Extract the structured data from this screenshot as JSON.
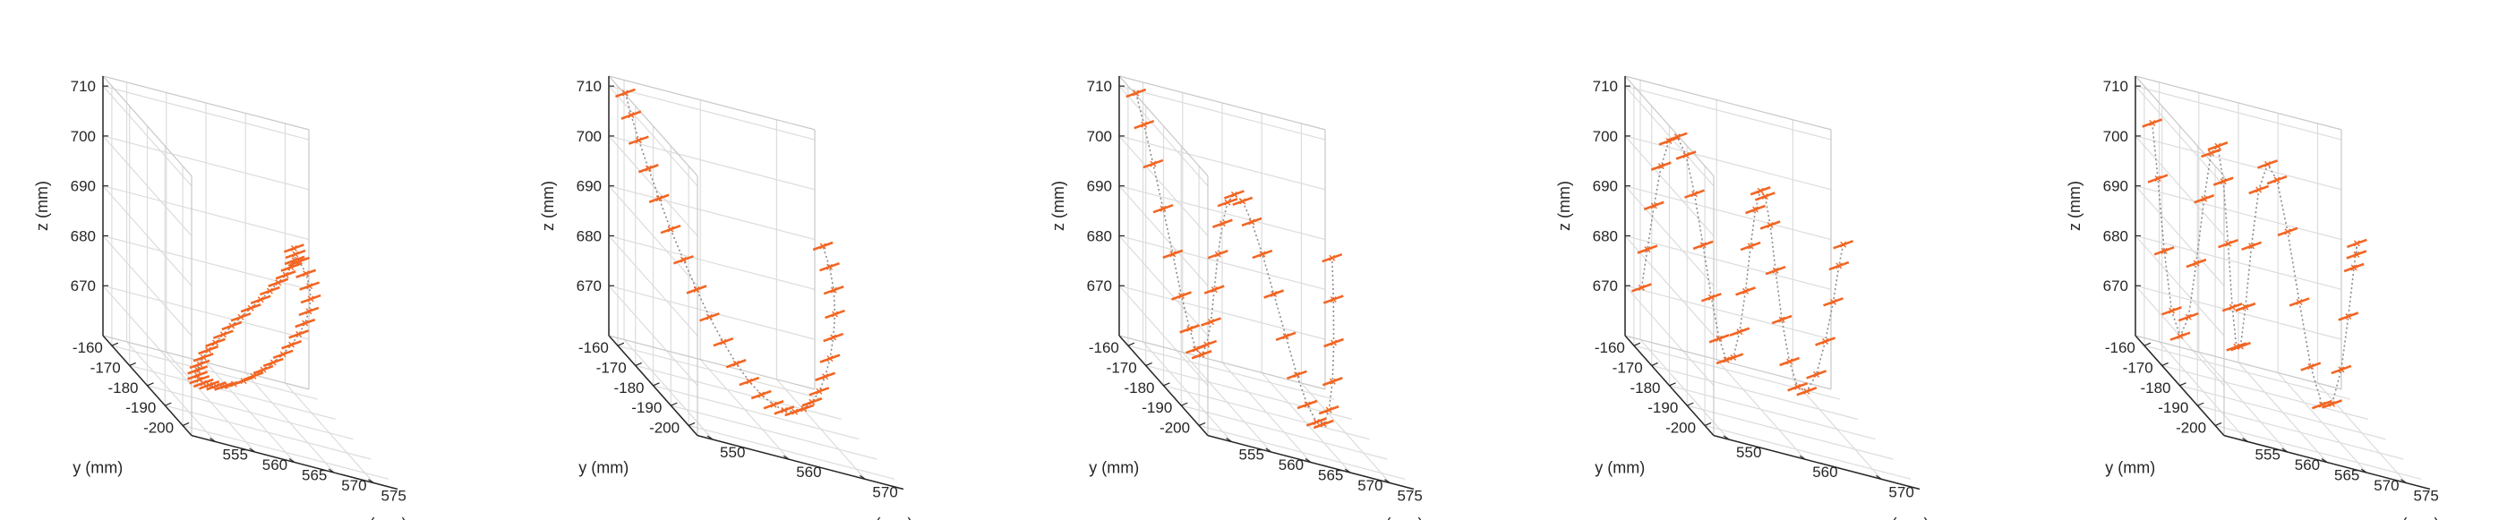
{
  "figure": {
    "panel_count": 5
  },
  "chart_data": [
    {
      "type": "scatter3d",
      "xlabel": "x (mm)",
      "ylabel": "y (mm)",
      "zlabel": "z (mm)",
      "x_ticks": [
        "555",
        "560",
        "565",
        "570",
        "575"
      ],
      "y_ticks": [
        "-160",
        "-170",
        "-180",
        "-190",
        "-200"
      ],
      "z_ticks": [
        "670",
        "680",
        "690",
        "700",
        "710"
      ],
      "xlim": [
        552,
        578
      ],
      "ylim": [
        -205,
        -155
      ],
      "zlim": [
        660,
        712
      ],
      "grid": true,
      "colors": {
        "marker": "#f26522",
        "path": "#8c8c8c"
      },
      "trajectory": "ellipse",
      "points": [
        [
          575.0,
          -160.0,
          689.0
        ],
        [
          574.8,
          -161.7,
          688.4
        ],
        [
          574.3,
          -163.5,
          687.7
        ],
        [
          573.4,
          -165.4,
          686.7
        ],
        [
          572.3,
          -167.4,
          685.5
        ],
        [
          570.9,
          -169.4,
          684.2
        ],
        [
          569.4,
          -171.4,
          682.7
        ],
        [
          567.8,
          -173.4,
          681.1
        ],
        [
          566.1,
          -175.4,
          679.5
        ],
        [
          564.4,
          -177.4,
          677.8
        ],
        [
          562.8,
          -179.4,
          676.2
        ],
        [
          561.3,
          -181.3,
          674.6
        ],
        [
          559.9,
          -183.1,
          673.1
        ],
        [
          558.6,
          -184.9,
          671.8
        ],
        [
          557.6,
          -186.6,
          670.6
        ],
        [
          556.8,
          -188.1,
          669.5
        ],
        [
          556.2,
          -189.6,
          668.7
        ],
        [
          555.9,
          -190.9,
          668.0
        ],
        [
          555.9,
          -192.0,
          667.6
        ],
        [
          556.2,
          -192.9,
          667.4
        ],
        [
          556.8,
          -193.5,
          667.5
        ],
        [
          557.6,
          -193.9,
          667.8
        ],
        [
          558.6,
          -194.0,
          668.2
        ],
        [
          559.9,
          -193.6,
          669.0
        ],
        [
          561.3,
          -192.8,
          669.9
        ],
        [
          562.8,
          -191.6,
          671.0
        ],
        [
          564.4,
          -190.0,
          672.3
        ],
        [
          566.1,
          -188.1,
          673.7
        ],
        [
          567.8,
          -186.0,
          675.2
        ],
        [
          569.4,
          -183.6,
          676.8
        ],
        [
          570.9,
          -181.0,
          678.5
        ],
        [
          572.3,
          -178.3,
          680.2
        ],
        [
          573.4,
          -175.5,
          681.9
        ],
        [
          574.3,
          -172.6,
          683.6
        ],
        [
          574.8,
          -169.6,
          685.2
        ],
        [
          575.0,
          -166.7,
          686.6
        ],
        [
          574.8,
          -164.0,
          687.9
        ]
      ]
    },
    {
      "type": "scatter3d",
      "xlabel": "x (mm)",
      "ylabel": "y (mm)",
      "zlabel": "z (mm)",
      "x_ticks": [
        "550",
        "560",
        "570"
      ],
      "y_ticks": [
        "-160",
        "-170",
        "-180",
        "-190",
        "-200"
      ],
      "z_ticks": [
        "670",
        "680",
        "690",
        "700",
        "710"
      ],
      "xlim": [
        548,
        575
      ],
      "ylim": [
        -205,
        -155
      ],
      "zlim": [
        660,
        712
      ],
      "grid": true,
      "colors": {
        "marker": "#f26522",
        "path": "#8c8c8c"
      },
      "trajectory": "U-shape",
      "points": [
        [
          549.0,
          -160.0,
          711.0
        ],
        [
          549.3,
          -162.0,
          707.5
        ],
        [
          549.8,
          -164.1,
          703.5
        ],
        [
          550.6,
          -166.2,
          699.0
        ],
        [
          551.5,
          -168.3,
          694.2
        ],
        [
          552.5,
          -170.5,
          689.3
        ],
        [
          553.7,
          -172.6,
          684.5
        ],
        [
          554.9,
          -174.8,
          679.9
        ],
        [
          556.1,
          -176.9,
          675.7
        ],
        [
          557.4,
          -179.1,
          672.1
        ],
        [
          558.6,
          -181.2,
          669.1
        ],
        [
          559.8,
          -183.4,
          666.9
        ],
        [
          560.9,
          -185.5,
          665.5
        ],
        [
          562.0,
          -187.7,
          664.8
        ],
        [
          562.9,
          -189.8,
          664.9
        ],
        [
          563.8,
          -191.9,
          665.8
        ],
        [
          564.5,
          -194.0,
          667.5
        ],
        [
          565.1,
          -196.0,
          669.9
        ],
        [
          565.6,
          -197.9,
          673.0
        ],
        [
          566.0,
          -199.6,
          676.8
        ],
        [
          566.3,
          -201.0,
          681.1
        ],
        [
          566.5,
          -202.0,
          685.8
        ],
        [
          566.6,
          -202.5,
          690.7
        ],
        [
          566.5,
          -202.3,
          695.4
        ],
        [
          566.2,
          -201.2,
          699.5
        ],
        [
          565.8,
          -199.2,
          702.7
        ]
      ]
    },
    {
      "type": "scatter3d",
      "xlabel": "x (mm)",
      "ylabel": "y (mm)",
      "zlabel": "z (mm)",
      "x_ticks": [
        "555",
        "560",
        "565",
        "570",
        "575"
      ],
      "y_ticks": [
        "-160",
        "-170",
        "-180",
        "-190",
        "-200"
      ],
      "z_ticks": [
        "670",
        "680",
        "690",
        "700",
        "710"
      ],
      "xlim": [
        552,
        578
      ],
      "ylim": [
        -205,
        -155
      ],
      "zlim": [
        660,
        712
      ],
      "grid": true,
      "colors": {
        "marker": "#f26522",
        "path": "#8c8c8c"
      },
      "trajectory": "W-shape",
      "points": [
        [
          553.0,
          -160.0,
          711.0
        ],
        [
          553.3,
          -163.2,
          706.1
        ],
        [
          553.8,
          -166.1,
          699.6
        ],
        [
          554.5,
          -168.6,
          691.9
        ],
        [
          555.3,
          -170.5,
          683.9
        ],
        [
          556.1,
          -171.8,
          676.4
        ],
        [
          557.0,
          -172.4,
          670.4
        ],
        [
          557.8,
          -172.3,
          666.6
        ],
        [
          558.7,
          -171.6,
          665.6
        ],
        [
          559.6,
          -170.4,
          667.5
        ],
        [
          560.5,
          -168.8,
          671.8
        ],
        [
          561.3,
          -167.1,
          677.9
        ],
        [
          562.1,
          -165.6,
          684.7
        ],
        [
          562.9,
          -164.6,
          690.8
        ],
        [
          563.6,
          -164.3,
          695.2
        ],
        [
          564.3,
          -164.9,
          697.3
        ],
        [
          565.0,
          -166.5,
          696.9
        ],
        [
          565.6,
          -169.0,
          694.0
        ],
        [
          566.2,
          -172.3,
          689.1
        ],
        [
          566.8,
          -176.1,
          682.9
        ],
        [
          567.4,
          -180.2,
          676.3
        ],
        [
          567.9,
          -184.2,
          670.4
        ],
        [
          568.4,
          -187.8,
          666.1
        ],
        [
          568.9,
          -190.8,
          664.0
        ],
        [
          569.3,
          -193.0,
          664.6
        ],
        [
          569.7,
          -194.2,
          668.1
        ],
        [
          570.1,
          -194.5,
          674.1
        ],
        [
          570.4,
          -193.8,
          681.7
        ],
        [
          570.7,
          -192.3,
          689.9
        ],
        [
          571.0,
          -190.2,
          697.5
        ]
      ]
    },
    {
      "type": "scatter3d",
      "xlabel": "x (mm)",
      "ylabel": "y (mm)",
      "zlabel": "z (mm)",
      "x_ticks": [
        "550",
        "560",
        "570"
      ],
      "y_ticks": [
        "-160",
        "-170",
        "-180",
        "-190",
        "-200"
      ],
      "z_ticks": [
        "670",
        "680",
        "690",
        "700",
        "710"
      ],
      "xlim": [
        548,
        575
      ],
      "ylim": [
        -205,
        -155
      ],
      "zlim": [
        660,
        712
      ],
      "grid": true,
      "colors": {
        "marker": "#f26522",
        "path": "#8c8c8c"
      },
      "trajectory": "three-hump",
      "points": [
        [
          549.0,
          -160.0,
          672.0
        ],
        [
          549.3,
          -162.0,
          680.6
        ],
        [
          549.7,
          -164.0,
          690.3
        ],
        [
          550.2,
          -165.9,
          699.2
        ],
        [
          550.8,
          -167.7,
          705.2
        ],
        [
          551.5,
          -169.4,
          707.0
        ],
        [
          552.3,
          -170.9,
          704.2
        ],
        [
          553.1,
          -172.2,
          697.3
        ],
        [
          554.0,
          -173.2,
          687.8
        ],
        [
          554.9,
          -174.0,
          678.0
        ],
        [
          555.8,
          -174.5,
          670.3
        ],
        [
          556.7,
          -174.7,
          666.5
        ],
        [
          557.6,
          -174.7,
          667.3
        ],
        [
          558.5,
          -174.4,
          672.7
        ],
        [
          559.4,
          -173.9,
          681.0
        ],
        [
          560.2,
          -173.3,
          690.1
        ],
        [
          561.0,
          -172.6,
          697.5
        ],
        [
          561.8,
          -172.0,
          701.3
        ],
        [
          562.5,
          -171.6,
          700.3
        ],
        [
          563.2,
          -171.5,
          694.8
        ],
        [
          563.8,
          -171.9,
          686.1
        ],
        [
          564.4,
          -172.9,
          676.9
        ],
        [
          565.0,
          -174.6,
          669.4
        ],
        [
          565.5,
          -177.0,
          665.5
        ],
        [
          566.0,
          -180.0,
          666.0
        ],
        [
          566.5,
          -183.3,
          670.9
        ],
        [
          566.9,
          -186.6,
          679.0
        ],
        [
          567.3,
          -189.4,
          688.2
        ],
        [
          567.6,
          -191.3,
          696.3
        ],
        [
          568.0,
          -192.0,
          701.0
        ]
      ]
    },
    {
      "type": "scatter3d",
      "xlabel": "x (mm)",
      "ylabel": "y (mm)",
      "zlabel": "z (mm)",
      "x_ticks": [
        "555",
        "560",
        "565",
        "570",
        "575"
      ],
      "y_ticks": [
        "-160",
        "-170",
        "-180",
        "-190",
        "-200"
      ],
      "z_ticks": [
        "670",
        "680",
        "690",
        "700",
        "710"
      ],
      "xlim": [
        552,
        578
      ],
      "ylim": [
        -205,
        -155
      ],
      "zlim": [
        660,
        712
      ],
      "grid": true,
      "colors": {
        "marker": "#f26522",
        "path": "#8c8c8c"
      },
      "trajectory": "multi-loop",
      "points": [
        [
          553.0,
          -160.0,
          705.0
        ],
        [
          553.4,
          -161.4,
          694.6
        ],
        [
          553.8,
          -163.2,
          681.0
        ],
        [
          554.3,
          -165.2,
          670.0
        ],
        [
          554.9,
          -167.3,
          666.0
        ],
        [
          555.5,
          -169.3,
          670.9
        ],
        [
          556.1,
          -171.0,
          682.6
        ],
        [
          556.8,
          -172.3,
          696.3
        ],
        [
          557.5,
          -173.1,
          706.1
        ],
        [
          558.3,
          -173.3,
          707.9
        ],
        [
          559.1,
          -172.9,
          701.0
        ],
        [
          559.9,
          -172.0,
          688.5
        ],
        [
          560.7,
          -170.8,
          675.6
        ],
        [
          561.5,
          -169.5,
          667.5
        ],
        [
          562.3,
          -168.3,
          667.4
        ],
        [
          563.1,
          -167.5,
          675.3
        ],
        [
          563.9,
          -167.3,
          687.8
        ],
        [
          564.7,
          -167.8,
          699.6
        ],
        [
          565.5,
          -169.2,
          705.6
        ],
        [
          566.2,
          -171.4,
          703.6
        ],
        [
          566.9,
          -174.3,
          694.7
        ],
        [
          567.6,
          -177.8,
          682.3
        ],
        [
          568.2,
          -181.5,
          671.1
        ],
        [
          568.8,
          -185.2,
          665.2
        ],
        [
          569.3,
          -188.6,
          666.9
        ],
        [
          569.8,
          -191.6,
          675.2
        ],
        [
          570.2,
          -193.8,
          686.9
        ],
        [
          570.6,
          -195.2,
          697.4
        ],
        [
          570.9,
          -195.5,
          702.5
        ],
        [
          571.0,
          -194.8,
          700.0
        ]
      ]
    }
  ]
}
